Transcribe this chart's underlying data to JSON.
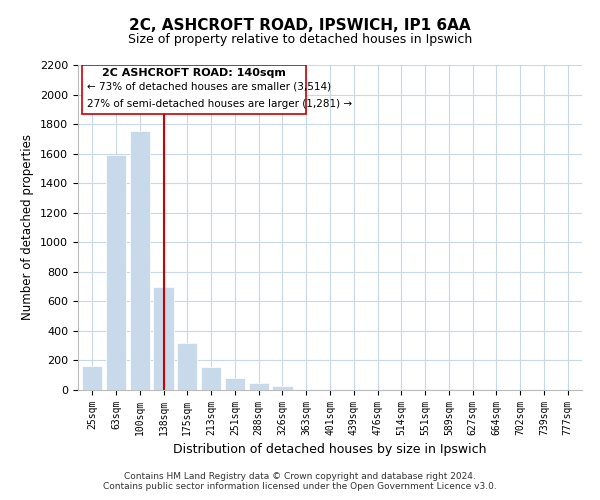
{
  "title": "2C, ASHCROFT ROAD, IPSWICH, IP1 6AA",
  "subtitle": "Size of property relative to detached houses in Ipswich",
  "xlabel": "Distribution of detached houses by size in Ipswich",
  "ylabel": "Number of detached properties",
  "bar_labels": [
    "25sqm",
    "63sqm",
    "100sqm",
    "138sqm",
    "175sqm",
    "213sqm",
    "251sqm",
    "288sqm",
    "326sqm",
    "363sqm",
    "401sqm",
    "439sqm",
    "476sqm",
    "514sqm",
    "551sqm",
    "589sqm",
    "627sqm",
    "664sqm",
    "702sqm",
    "739sqm",
    "777sqm"
  ],
  "bar_values": [
    160,
    1590,
    1750,
    700,
    315,
    155,
    80,
    45,
    25,
    0,
    0,
    0,
    0,
    0,
    0,
    0,
    0,
    0,
    0,
    0,
    0
  ],
  "highlight_index": 3,
  "bar_color": "#c8daea",
  "highlight_line_color": "#cc0000",
  "ylim": [
    0,
    2200
  ],
  "yticks": [
    0,
    200,
    400,
    600,
    800,
    1000,
    1200,
    1400,
    1600,
    1800,
    2000,
    2200
  ],
  "annotation_title": "2C ASHCROFT ROAD: 140sqm",
  "annotation_line1": "← 73% of detached houses are smaller (3,514)",
  "annotation_line2": "27% of semi-detached houses are larger (1,281) →",
  "footnote1": "Contains HM Land Registry data © Crown copyright and database right 2024.",
  "footnote2": "Contains public sector information licensed under the Open Government Licence v3.0.",
  "background_color": "#ffffff",
  "grid_color": "#c8d8e8"
}
